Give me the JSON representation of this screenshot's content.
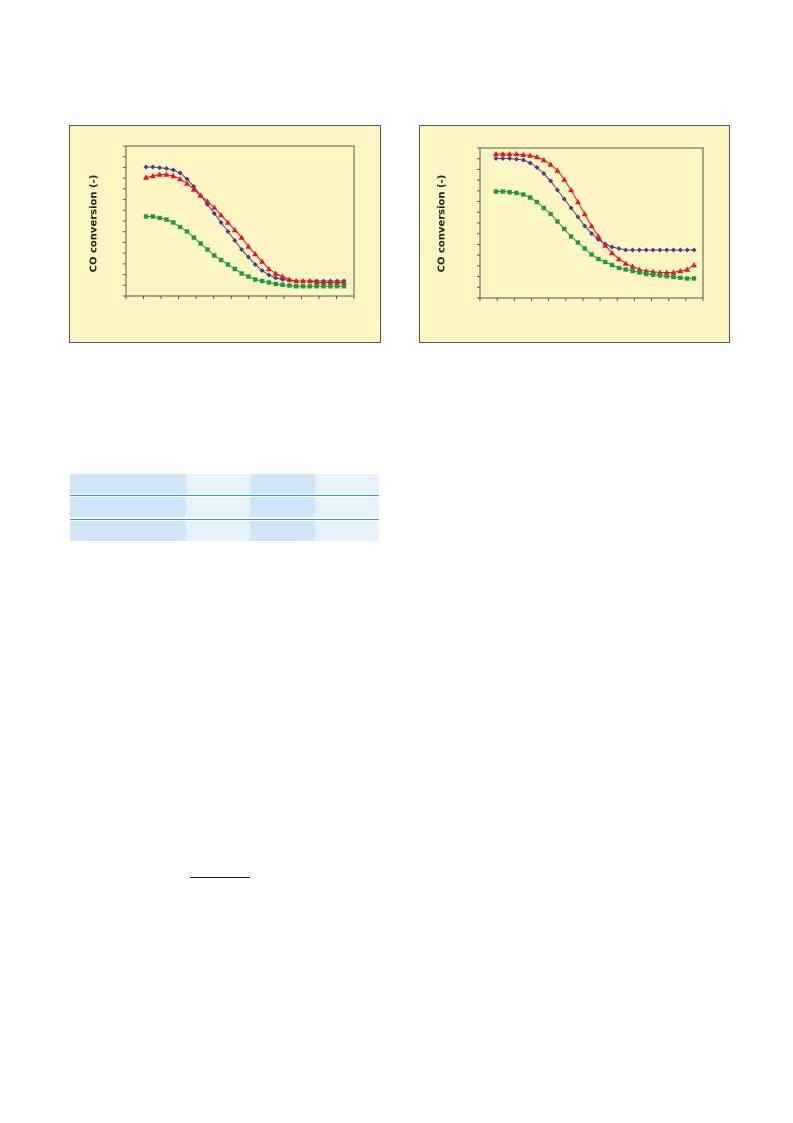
{
  "colors": {
    "panel_bg": "#fdf6c3",
    "series_purple": "#4b3b8f",
    "series_red": "#e8141e",
    "series_green": "#1e9a3a",
    "table_dark": "#cfe6f8",
    "table_light": "#e6f2fc",
    "table_rule": "#3a9ad9"
  },
  "chart_data": [
    {
      "type": "line",
      "ylabel": "CO conversion (-)",
      "xlabel": "",
      "grid": false,
      "x": [
        0,
        1,
        2,
        3,
        4,
        5,
        6,
        7,
        8,
        9,
        10,
        11,
        12,
        13,
        14,
        15,
        16,
        17,
        18,
        19,
        20,
        21,
        22,
        23,
        24,
        25,
        26,
        27,
        28,
        29
      ],
      "ylim": [
        0,
        1
      ],
      "series": [
        {
          "marker": "diamond",
          "values": [
            0.86,
            0.86,
            0.855,
            0.85,
            0.84,
            0.82,
            0.78,
            0.73,
            0.67,
            0.61,
            0.55,
            0.49,
            0.43,
            0.37,
            0.31,
            0.26,
            0.21,
            0.17,
            0.14,
            0.12,
            0.11,
            0.105,
            0.1,
            0.1,
            0.1,
            0.1,
            0.1,
            0.1,
            0.1,
            0.1
          ]
        },
        {
          "marker": "triangle",
          "values": [
            0.79,
            0.8,
            0.81,
            0.81,
            0.8,
            0.78,
            0.75,
            0.71,
            0.67,
            0.63,
            0.59,
            0.54,
            0.49,
            0.44,
            0.39,
            0.33,
            0.28,
            0.23,
            0.18,
            0.15,
            0.13,
            0.11,
            0.1,
            0.1,
            0.1,
            0.09,
            0.09,
            0.09,
            0.09,
            0.09
          ]
        },
        {
          "marker": "square",
          "values": [
            0.53,
            0.53,
            0.52,
            0.51,
            0.49,
            0.46,
            0.43,
            0.39,
            0.35,
            0.31,
            0.27,
            0.24,
            0.21,
            0.18,
            0.15,
            0.13,
            0.11,
            0.1,
            0.09,
            0.08,
            0.075,
            0.07,
            0.065,
            0.065,
            0.065,
            0.065,
            0.065,
            0.065,
            0.065,
            0.065
          ]
        }
      ]
    },
    {
      "type": "line",
      "ylabel": "CO conversion (-)",
      "xlabel": "",
      "grid": false,
      "x": [
        0,
        1,
        2,
        3,
        4,
        5,
        6,
        7,
        8,
        9,
        10,
        11,
        12,
        13,
        14,
        15,
        16,
        17,
        18,
        19,
        20,
        21,
        22,
        23,
        24,
        25,
        26,
        27,
        28,
        29
      ],
      "ylim": [
        0,
        1
      ],
      "series": [
        {
          "marker": "diamond",
          "values": [
            0.93,
            0.93,
            0.93,
            0.925,
            0.92,
            0.9,
            0.87,
            0.83,
            0.78,
            0.72,
            0.66,
            0.6,
            0.54,
            0.48,
            0.43,
            0.39,
            0.36,
            0.34,
            0.33,
            0.32,
            0.32,
            0.32,
            0.32,
            0.32,
            0.32,
            0.32,
            0.32,
            0.32,
            0.32,
            0.32
          ]
        },
        {
          "marker": "triangle",
          "values": [
            0.96,
            0.96,
            0.96,
            0.96,
            0.955,
            0.95,
            0.94,
            0.92,
            0.89,
            0.85,
            0.79,
            0.72,
            0.64,
            0.56,
            0.48,
            0.41,
            0.35,
            0.3,
            0.26,
            0.23,
            0.21,
            0.19,
            0.18,
            0.175,
            0.17,
            0.17,
            0.17,
            0.18,
            0.19,
            0.22
          ]
        },
        {
          "marker": "square",
          "values": [
            0.71,
            0.71,
            0.705,
            0.7,
            0.69,
            0.67,
            0.64,
            0.6,
            0.56,
            0.51,
            0.46,
            0.41,
            0.37,
            0.33,
            0.29,
            0.26,
            0.24,
            0.22,
            0.2,
            0.19,
            0.18,
            0.17,
            0.16,
            0.155,
            0.15,
            0.145,
            0.14,
            0.135,
            0.13,
            0.13
          ]
        }
      ]
    }
  ]
}
